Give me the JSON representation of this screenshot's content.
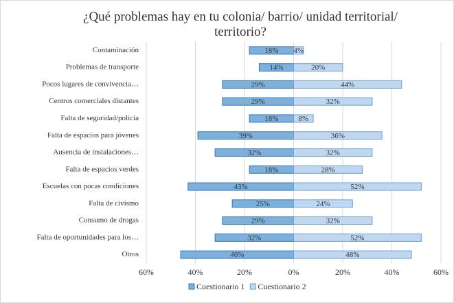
{
  "chart_data": {
    "type": "diverging-bar",
    "title": "¿Qué problemas hay en tu colonia/ barrio/ unidad territorial/ territorio?",
    "categories": [
      "Contaminación",
      "Problemas de transporte",
      "Pocos lugares de convivencia…",
      "Centros comerciales distantes",
      "Falta de seguridad/policía",
      "Falta de espacios para jóvenes",
      "Ausencia de instalaciones…",
      "Falta de espacios verdes",
      "Escuelas con pocas condiciones",
      "Falta de civismo",
      "Consumo de drogas",
      "Falta de oportunidades para los…",
      "Otros"
    ],
    "series": [
      {
        "name": "Cuestionario 1",
        "color": "#7fb0d9",
        "border": "#2f78b8",
        "values": [
          -18,
          -14,
          -29,
          -29,
          -18,
          -39,
          -32,
          -18,
          -43,
          -25,
          -29,
          -32,
          -46
        ],
        "value_labels": [
          "18%",
          "14%",
          "29%",
          "29%",
          "18%",
          "39%",
          "32%",
          "18%",
          "43%",
          "25%",
          "29%",
          "32%",
          "46%"
        ]
      },
      {
        "name": "Cuestionario 2",
        "color": "#bfd8ef",
        "border": "#6f9fd0",
        "values": [
          4,
          20,
          44,
          32,
          8,
          36,
          32,
          28,
          52,
          24,
          32,
          52,
          48
        ],
        "value_labels": [
          "4%",
          "20%",
          "44%",
          "32%",
          "8%",
          "36%",
          "32%",
          "28%",
          "52%",
          "24%",
          "32%",
          "52%",
          "48%"
        ]
      }
    ],
    "xlim": [
      -60,
      60
    ],
    "xticks": [
      {
        "value": -60,
        "label": "60%"
      },
      {
        "value": -40,
        "label": "40%"
      },
      {
        "value": -20,
        "label": "20%"
      },
      {
        "value": 0,
        "label": "0%"
      },
      {
        "value": 20,
        "label": "20%"
      },
      {
        "value": 40,
        "label": "40%"
      },
      {
        "value": 60,
        "label": "60%"
      }
    ],
    "grid": true,
    "legend": "bottom"
  }
}
